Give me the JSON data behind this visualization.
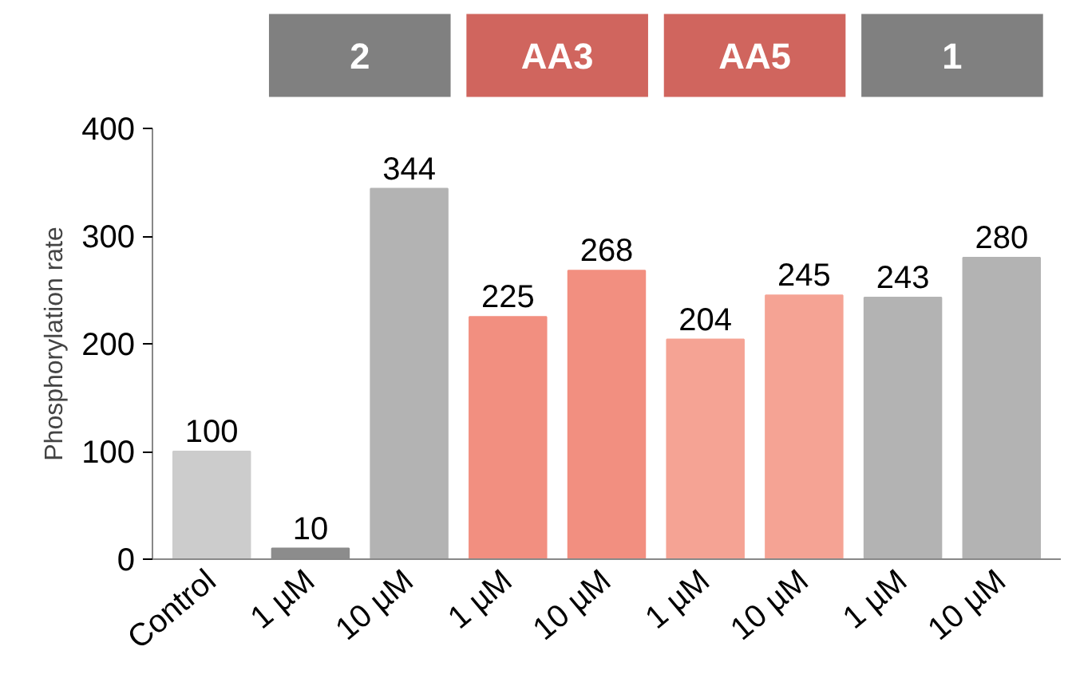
{
  "chart_data": {
    "type": "bar",
    "ylabel": "Phosphorylation rate",
    "categories": [
      "Control",
      "1 µM",
      "10 µM",
      "1 µM",
      "10 µM",
      "1 µM",
      "10 µM",
      "1 µM",
      "10 µM"
    ],
    "values": [
      100,
      10,
      344,
      225,
      268,
      204,
      245,
      243,
      280
    ],
    "colors": [
      "#cccccc",
      "#8c8c8c",
      "#b3b3b3",
      "#f28f80",
      "#f28f80",
      "#f5a394",
      "#f5a394",
      "#b3b3b3",
      "#b3b3b3"
    ],
    "ylim": [
      0,
      400
    ],
    "yticks": [
      0,
      100,
      200,
      300,
      400
    ],
    "grid": false,
    "data_labels": true,
    "annotations": [
      "2",
      "AA3",
      "AA5",
      "1"
    ]
  }
}
